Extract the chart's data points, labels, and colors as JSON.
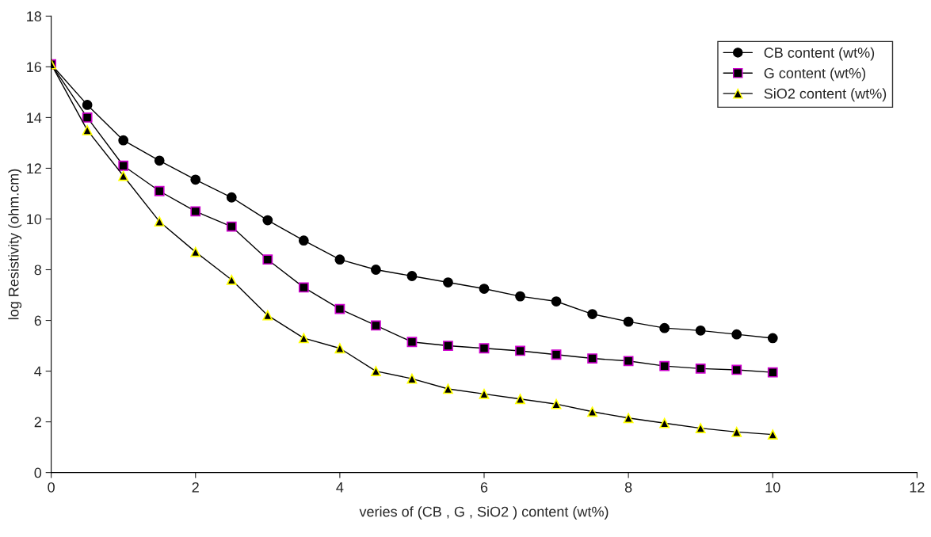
{
  "chart_data": {
    "type": "line",
    "xlabel": "veries of (CB , G , SiO2 ) content (wt%)",
    "ylabel": "log Resistivity (ohm.cm)",
    "x": [
      0,
      0.5,
      1,
      1.5,
      2,
      2.5,
      3,
      3.5,
      4,
      4.5,
      5,
      5.5,
      6,
      6.5,
      7,
      7.5,
      8,
      8.5,
      9,
      9.5,
      10
    ],
    "series": [
      {
        "name": "CB content (wt%)",
        "color": "#000000",
        "marker": "circle",
        "values": [
          16.1,
          14.5,
          13.1,
          12.3,
          11.55,
          10.85,
          9.95,
          9.15,
          8.4,
          8.0,
          7.75,
          7.5,
          7.25,
          6.95,
          6.75,
          6.25,
          5.95,
          5.7,
          5.6,
          5.45,
          5.3
        ]
      },
      {
        "name": "G content (wt%)",
        "color": "#000000",
        "marker": "square",
        "values": [
          16.1,
          14.0,
          12.1,
          11.1,
          10.3,
          9.7,
          8.4,
          7.3,
          6.45,
          5.8,
          5.15,
          5.0,
          4.9,
          4.8,
          4.65,
          4.5,
          4.4,
          4.2,
          4.1,
          4.05,
          3.95
        ]
      },
      {
        "name": "SiO2 content (wt%)",
        "color": "#000000",
        "marker": "triangle",
        "values": [
          16.1,
          13.5,
          11.7,
          9.9,
          8.7,
          7.6,
          6.2,
          5.3,
          4.9,
          4.0,
          3.7,
          3.3,
          3.1,
          2.9,
          2.7,
          2.4,
          2.15,
          1.95,
          1.75,
          1.6,
          1.5
        ]
      }
    ],
    "xlim": [
      0,
      12
    ],
    "xticks": [
      0,
      2,
      4,
      6,
      8,
      10,
      12
    ],
    "ylim": [
      0,
      18
    ],
    "yticks": [
      0,
      2,
      4,
      6,
      8,
      10,
      12,
      14,
      16,
      18
    ],
    "grid": false,
    "legend": "top right"
  }
}
